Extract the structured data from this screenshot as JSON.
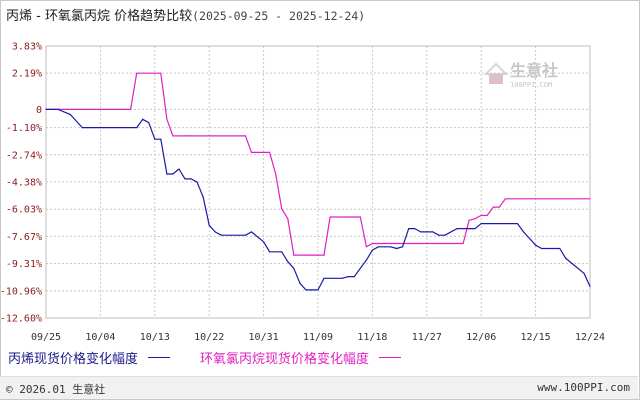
{
  "title": {
    "main": "丙烯 - 环氧氯丙烷 价格趋势比较",
    "range": "(2025-09-25 - 2025-12-24)"
  },
  "watermark": {
    "brand": "生意社",
    "url": "100PPI.COM"
  },
  "footer": {
    "left": "© 2026.01 生意社",
    "right": "www.100PPI.com"
  },
  "colors": {
    "series1": "#1a1aa6",
    "series2": "#e020c0",
    "axis_label": "#8b1a1a",
    "grid": "#c8c8c8"
  },
  "chart_data": {
    "type": "line",
    "title": "丙烯 - 环氧氯丙烷 价格趋势比较",
    "x_start": "09/25",
    "x_end": "12/24",
    "xticks": [
      "09/25",
      "10/04",
      "10/13",
      "10/22",
      "10/31",
      "11/09",
      "11/18",
      "11/27",
      "12/06",
      "12/15",
      "12/24"
    ],
    "yticks": [
      "3.83%",
      "2.19%",
      "0",
      "-1.10%",
      "-2.74%",
      "-4.38%",
      "-6.03%",
      "-7.67%",
      "-9.31%",
      "-10.96%",
      "-12.60%"
    ],
    "ylim": [
      -12.6,
      3.83
    ],
    "grid": true,
    "legend_position": "bottom",
    "series": [
      {
        "name": "丙烯现货价格变化幅度",
        "points": [
          [
            "09/25",
            0
          ],
          [
            "09/27",
            0
          ],
          [
            "09/29",
            -0.3
          ],
          [
            "10/01",
            -1.1
          ],
          [
            "10/02",
            -1.1
          ],
          [
            "10/10",
            -1.1
          ],
          [
            "10/11",
            -0.6
          ],
          [
            "10/12",
            -0.8
          ],
          [
            "10/13",
            -1.8
          ],
          [
            "10/14",
            -1.8
          ],
          [
            "10/15",
            -3.9
          ],
          [
            "10/16",
            -3.9
          ],
          [
            "10/17",
            -3.6
          ],
          [
            "10/18",
            -4.2
          ],
          [
            "10/19",
            -4.2
          ],
          [
            "10/20",
            -4.4
          ],
          [
            "10/21",
            -5.3
          ],
          [
            "10/22",
            -7.0
          ],
          [
            "10/23",
            -7.4
          ],
          [
            "10/24",
            -7.6
          ],
          [
            "10/28",
            -7.6
          ],
          [
            "10/29",
            -7.4
          ],
          [
            "10/31",
            -8.0
          ],
          [
            "11/01",
            -8.6
          ],
          [
            "11/03",
            -8.6
          ],
          [
            "11/04",
            -9.2
          ],
          [
            "11/05",
            -9.6
          ],
          [
            "11/06",
            -10.5
          ],
          [
            "11/07",
            -10.9
          ],
          [
            "11/08",
            -10.9
          ],
          [
            "11/09",
            -10.9
          ],
          [
            "11/10",
            -10.2
          ],
          [
            "11/11",
            -10.2
          ],
          [
            "11/13",
            -10.2
          ],
          [
            "11/14",
            -10.1
          ],
          [
            "11/15",
            -10.1
          ],
          [
            "11/16",
            -9.6
          ],
          [
            "11/17",
            -9.1
          ],
          [
            "11/18",
            -8.5
          ],
          [
            "11/19",
            -8.3
          ],
          [
            "11/20",
            -8.3
          ],
          [
            "11/21",
            -8.3
          ],
          [
            "11/22",
            -8.4
          ],
          [
            "11/23",
            -8.3
          ],
          [
            "11/24",
            -7.2
          ],
          [
            "11/25",
            -7.2
          ],
          [
            "11/26",
            -7.4
          ],
          [
            "11/28",
            -7.4
          ],
          [
            "11/29",
            -7.6
          ],
          [
            "11/30",
            -7.6
          ],
          [
            "12/02",
            -7.2
          ],
          [
            "12/04",
            -7.2
          ],
          [
            "12/05",
            -7.2
          ],
          [
            "12/06",
            -6.9
          ],
          [
            "12/10",
            -6.9
          ],
          [
            "12/12",
            -6.9
          ],
          [
            "12/13",
            -7.4
          ],
          [
            "12/14",
            -7.8
          ],
          [
            "12/15",
            -8.2
          ],
          [
            "12/16",
            -8.4
          ],
          [
            "12/19",
            -8.4
          ],
          [
            "12/20",
            -9.0
          ],
          [
            "12/21",
            -9.3
          ],
          [
            "12/23",
            -9.9
          ],
          [
            "12/24",
            -10.7
          ]
        ]
      },
      {
        "name": "环氧氯丙烷现货价格变化幅度",
        "points": [
          [
            "09/25",
            0
          ],
          [
            "10/01",
            0
          ],
          [
            "10/09",
            0
          ],
          [
            "10/10",
            2.19
          ],
          [
            "10/14",
            2.19
          ],
          [
            "10/15",
            -0.6
          ],
          [
            "10/16",
            -1.6
          ],
          [
            "10/18",
            -1.6
          ],
          [
            "10/28",
            -1.6
          ],
          [
            "10/29",
            -2.6
          ],
          [
            "11/01",
            -2.6
          ],
          [
            "11/02",
            -3.9
          ],
          [
            "11/03",
            -6.0
          ],
          [
            "11/04",
            -6.6
          ],
          [
            "11/05",
            -8.8
          ],
          [
            "11/07",
            -8.8
          ],
          [
            "11/08",
            -8.8
          ],
          [
            "11/09",
            -8.8
          ],
          [
            "11/10",
            -8.8
          ],
          [
            "11/11",
            -6.5
          ],
          [
            "11/14",
            -6.5
          ],
          [
            "11/15",
            -6.5
          ],
          [
            "11/16",
            -6.5
          ],
          [
            "11/17",
            -8.3
          ],
          [
            "11/18",
            -8.1
          ],
          [
            "11/20",
            -8.1
          ],
          [
            "11/27",
            -8.1
          ],
          [
            "12/01",
            -8.1
          ],
          [
            "12/03",
            -8.1
          ],
          [
            "12/04",
            -6.7
          ],
          [
            "12/05",
            -6.6
          ],
          [
            "12/06",
            -6.4
          ],
          [
            "12/07",
            -6.4
          ],
          [
            "12/08",
            -5.9
          ],
          [
            "12/09",
            -5.9
          ],
          [
            "12/10",
            -5.4
          ],
          [
            "12/12",
            -5.4
          ],
          [
            "12/24",
            -5.4
          ]
        ]
      }
    ]
  }
}
